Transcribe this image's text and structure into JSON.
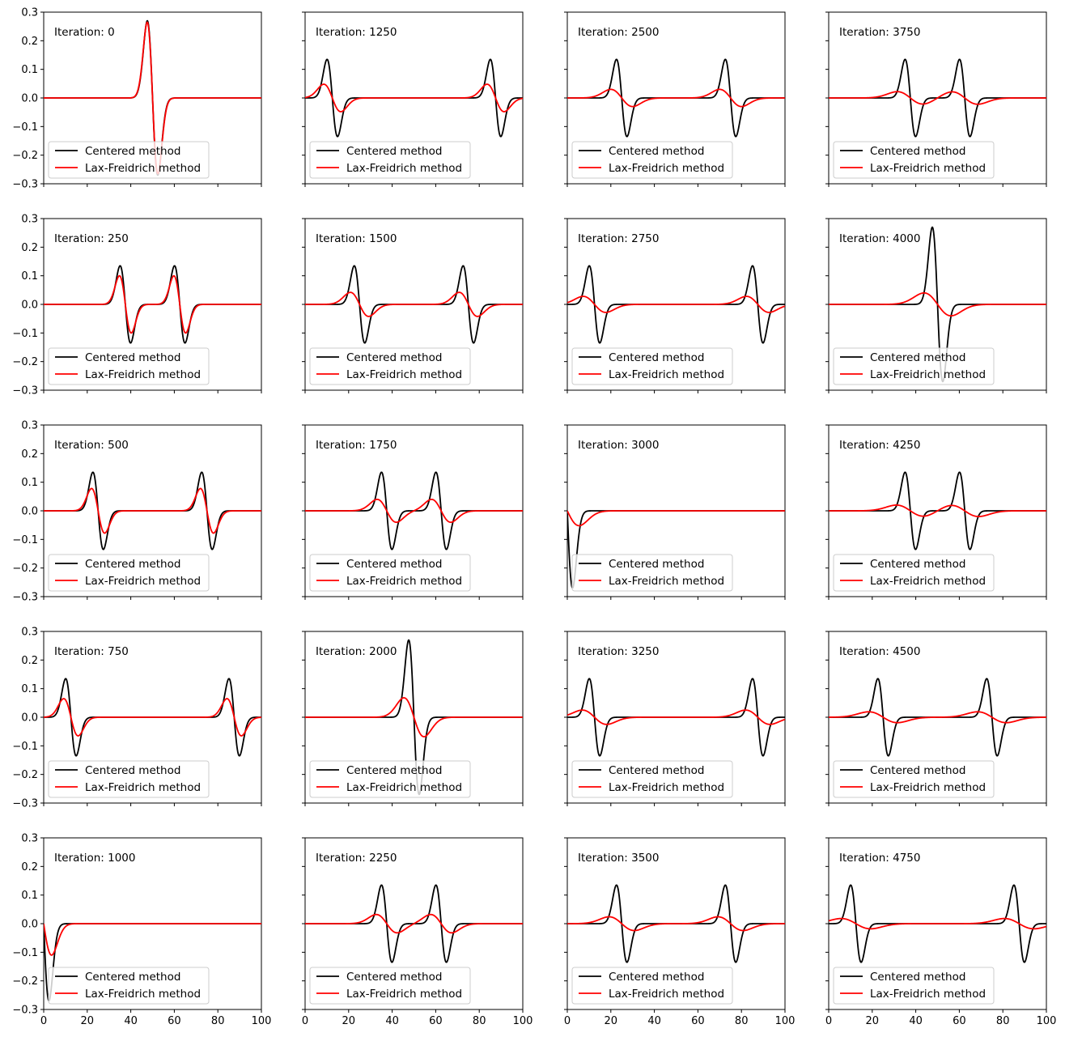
{
  "chart_data": {
    "type": "line",
    "layout": {
      "rows": 5,
      "cols": 4,
      "order": "column-major",
      "sharex": true,
      "sharey": true
    },
    "xlim": [
      0,
      100
    ],
    "ylim": [
      -0.3,
      0.3
    ],
    "xticks": [
      0,
      20,
      40,
      60,
      80,
      100
    ],
    "yticks": [
      0.3,
      0.2,
      0.1,
      0.0,
      -0.1,
      -0.2,
      -0.3
    ],
    "xticklabels": [
      "0",
      "20",
      "40",
      "60",
      "80",
      "100"
    ],
    "yticklabels": [
      "0.3",
      "0.2",
      "0.1",
      "0.0",
      "−0.1",
      "−0.2",
      "−0.3"
    ],
    "grid": false,
    "legend": {
      "placement": "lower-left",
      "entries": [
        "Centered method",
        "Lax-Freidrich method"
      ]
    },
    "series_colors": {
      "Centered method": "#000000",
      "Lax-Freidrich method": "#ff0000"
    },
    "panels": [
      {
        "label": "Iteration: 0",
        "centered": [
          {
            "pos": 50,
            "amp": 0.27,
            "w": 2.4
          }
        ],
        "laxf": [
          {
            "pos": 50,
            "amp": 0.265,
            "w": 2.45
          }
        ]
      },
      {
        "label": "Iteration: 250",
        "centered": [
          {
            "pos": 37.5,
            "amp": 0.135,
            "w": 2.4
          },
          {
            "pos": 62.5,
            "amp": 0.135,
            "w": 2.4
          }
        ],
        "laxf": [
          {
            "pos": 37.5,
            "amp": 0.1,
            "w": 2.7
          },
          {
            "pos": 62.5,
            "amp": 0.1,
            "w": 2.7
          }
        ]
      },
      {
        "label": "Iteration: 500",
        "centered": [
          {
            "pos": 25,
            "amp": 0.135,
            "w": 2.4
          },
          {
            "pos": 75,
            "amp": 0.135,
            "w": 2.4
          }
        ],
        "laxf": [
          {
            "pos": 25,
            "amp": 0.078,
            "w": 3.0
          },
          {
            "pos": 75,
            "amp": 0.078,
            "w": 3.0
          }
        ]
      },
      {
        "label": "Iteration: 750",
        "centered": [
          {
            "pos": 12.5,
            "amp": 0.135,
            "w": 2.4
          },
          {
            "pos": 87.5,
            "amp": 0.135,
            "w": 2.4
          }
        ],
        "laxf": [
          {
            "pos": 12.5,
            "amp": 0.065,
            "w": 3.3
          },
          {
            "pos": 87.5,
            "amp": 0.065,
            "w": 3.3
          }
        ]
      },
      {
        "label": "Iteration: 1000",
        "centered": [
          {
            "pos": 0,
            "amp": 0.27,
            "w": 2.4
          }
        ],
        "laxf": [
          {
            "pos": 0,
            "amp": 0.11,
            "w": 3.6
          }
        ]
      },
      {
        "label": "Iteration: 1250",
        "centered": [
          {
            "pos": 12.5,
            "amp": 0.135,
            "w": 2.4
          },
          {
            "pos": 87.5,
            "amp": 0.135,
            "w": 2.4
          }
        ],
        "laxf": [
          {
            "pos": 12.5,
            "amp": 0.048,
            "w": 3.9
          },
          {
            "pos": 87.5,
            "amp": 0.048,
            "w": 3.9
          }
        ]
      },
      {
        "label": "Iteration: 1500",
        "centered": [
          {
            "pos": 25,
            "amp": 0.135,
            "w": 2.4
          },
          {
            "pos": 75,
            "amp": 0.135,
            "w": 2.4
          }
        ],
        "laxf": [
          {
            "pos": 25,
            "amp": 0.042,
            "w": 4.2
          },
          {
            "pos": 75,
            "amp": 0.042,
            "w": 4.2
          }
        ]
      },
      {
        "label": "Iteration: 1750",
        "centered": [
          {
            "pos": 37.5,
            "amp": 0.135,
            "w": 2.4
          },
          {
            "pos": 62.5,
            "amp": 0.135,
            "w": 2.4
          }
        ],
        "laxf": [
          {
            "pos": 37.5,
            "amp": 0.04,
            "w": 4.4
          },
          {
            "pos": 62.5,
            "amp": 0.04,
            "w": 4.4
          }
        ]
      },
      {
        "label": "Iteration: 2000",
        "centered": [
          {
            "pos": 50,
            "amp": 0.27,
            "w": 2.4
          }
        ],
        "laxf": [
          {
            "pos": 50,
            "amp": 0.068,
            "w": 4.6
          }
        ]
      },
      {
        "label": "Iteration: 2250",
        "centered": [
          {
            "pos": 37.5,
            "amp": 0.135,
            "w": 2.4
          },
          {
            "pos": 62.5,
            "amp": 0.135,
            "w": 2.4
          }
        ],
        "laxf": [
          {
            "pos": 37.5,
            "amp": 0.032,
            "w": 4.8
          },
          {
            "pos": 62.5,
            "amp": 0.032,
            "w": 4.8
          }
        ]
      },
      {
        "label": "Iteration: 2500",
        "centered": [
          {
            "pos": 25,
            "amp": 0.135,
            "w": 2.4
          },
          {
            "pos": 75,
            "amp": 0.135,
            "w": 2.4
          }
        ],
        "laxf": [
          {
            "pos": 25,
            "amp": 0.03,
            "w": 5.0
          },
          {
            "pos": 75,
            "amp": 0.03,
            "w": 5.0
          }
        ]
      },
      {
        "label": "Iteration: 2750",
        "centered": [
          {
            "pos": 12.5,
            "amp": 0.135,
            "w": 2.4
          },
          {
            "pos": 87.5,
            "amp": 0.135,
            "w": 2.4
          }
        ],
        "laxf": [
          {
            "pos": 12.5,
            "amp": 0.028,
            "w": 5.2
          },
          {
            "pos": 87.5,
            "amp": 0.028,
            "w": 5.2
          }
        ]
      },
      {
        "label": "Iteration: 3000",
        "centered": [
          {
            "pos": 0,
            "amp": 0.27,
            "w": 2.4
          }
        ],
        "laxf": [
          {
            "pos": 0,
            "amp": 0.052,
            "w": 5.4
          }
        ]
      },
      {
        "label": "Iteration: 3250",
        "centered": [
          {
            "pos": 12.5,
            "amp": 0.135,
            "w": 2.4
          },
          {
            "pos": 87.5,
            "amp": 0.135,
            "w": 2.4
          }
        ],
        "laxf": [
          {
            "pos": 12.5,
            "amp": 0.025,
            "w": 5.6
          },
          {
            "pos": 87.5,
            "amp": 0.025,
            "w": 5.6
          }
        ]
      },
      {
        "label": "Iteration: 3500",
        "centered": [
          {
            "pos": 25,
            "amp": 0.135,
            "w": 2.4
          },
          {
            "pos": 75,
            "amp": 0.135,
            "w": 2.4
          }
        ],
        "laxf": [
          {
            "pos": 25,
            "amp": 0.024,
            "w": 5.8
          },
          {
            "pos": 75,
            "amp": 0.024,
            "w": 5.8
          }
        ]
      },
      {
        "label": "Iteration: 3750",
        "centered": [
          {
            "pos": 37.5,
            "amp": 0.135,
            "w": 2.4
          },
          {
            "pos": 62.5,
            "amp": 0.135,
            "w": 2.4
          }
        ],
        "laxf": [
          {
            "pos": 37.5,
            "amp": 0.022,
            "w": 6.0
          },
          {
            "pos": 62.5,
            "amp": 0.022,
            "w": 6.0
          }
        ]
      },
      {
        "label": "Iteration: 4000",
        "centered": [
          {
            "pos": 50,
            "amp": 0.27,
            "w": 2.4
          }
        ],
        "laxf": [
          {
            "pos": 50,
            "amp": 0.04,
            "w": 6.2
          }
        ]
      },
      {
        "label": "Iteration: 4250",
        "centered": [
          {
            "pos": 37.5,
            "amp": 0.135,
            "w": 2.4
          },
          {
            "pos": 62.5,
            "amp": 0.135,
            "w": 2.4
          }
        ],
        "laxf": [
          {
            "pos": 37.5,
            "amp": 0.02,
            "w": 6.4
          },
          {
            "pos": 62.5,
            "amp": 0.02,
            "w": 6.4
          }
        ]
      },
      {
        "label": "Iteration: 4500",
        "centered": [
          {
            "pos": 25,
            "amp": 0.135,
            "w": 2.4
          },
          {
            "pos": 75,
            "amp": 0.135,
            "w": 2.4
          }
        ],
        "laxf": [
          {
            "pos": 25,
            "amp": 0.019,
            "w": 6.6
          },
          {
            "pos": 75,
            "amp": 0.019,
            "w": 6.6
          }
        ]
      },
      {
        "label": "Iteration: 4750",
        "centered": [
          {
            "pos": 12.5,
            "amp": 0.135,
            "w": 2.4
          },
          {
            "pos": 87.5,
            "amp": 0.135,
            "w": 2.4
          }
        ],
        "laxf": [
          {
            "pos": 12.5,
            "amp": 0.018,
            "w": 6.8
          },
          {
            "pos": 87.5,
            "amp": 0.018,
            "w": 6.8
          }
        ]
      }
    ]
  }
}
